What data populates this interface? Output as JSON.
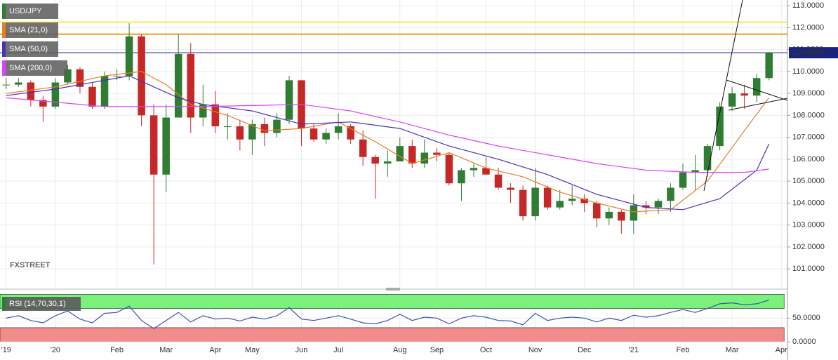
{
  "chart_data": [
    {
      "type": "candlestick",
      "title": "USD/JPY",
      "open": [
        109.4,
        109.4,
        109.5,
        108.7,
        108.4,
        109.5,
        110.1,
        109.3,
        108.4,
        109.8,
        109.8,
        111.6,
        108.0,
        105.3,
        107.9,
        110.8,
        107.9,
        108.5,
        107.5,
        107.5,
        106.9,
        107.6,
        107.2,
        107.8,
        109.6,
        107.4,
        106.9,
        107.2,
        107.5,
        106.9,
        106.1,
        105.8,
        105.9,
        106.6,
        105.8,
        106.3,
        106.2,
        104.9,
        105.5,
        105.6,
        105.3,
        104.7,
        104.6,
        103.4,
        104.7,
        103.8,
        104.1,
        104.2,
        104.0,
        103.3,
        103.6,
        103.2,
        103.9,
        103.8,
        104.1,
        104.7,
        105.4,
        105.5,
        106.6,
        108.4,
        109.0,
        108.9,
        109.7
      ],
      "high": [
        109.7,
        109.7,
        109.6,
        108.9,
        109.7,
        110.3,
        110.2,
        109.5,
        110.0,
        110.1,
        112.2,
        111.7,
        108.5,
        108.5,
        111.7,
        111.3,
        109.4,
        109.1,
        108.1,
        107.8,
        107.8,
        107.9,
        108.1,
        109.8,
        109.6,
        107.6,
        107.4,
        108.1,
        107.6,
        107.3,
        106.2,
        106.4,
        107.0,
        106.9,
        106.9,
        106.5,
        106.3,
        105.6,
        105.8,
        106.1,
        105.6,
        104.9,
        104.8,
        105.6,
        104.8,
        104.6,
        104.8,
        104.4,
        104.1,
        103.8,
        103.7,
        104.4,
        104.1,
        104.2,
        104.9,
        105.8,
        106.2,
        106.7,
        108.6,
        109.3,
        109.4,
        109.9,
        110.9
      ],
      "low": [
        109.2,
        109.3,
        108.4,
        107.7,
        108.3,
        109.4,
        109.0,
        108.3,
        108.3,
        109.6,
        109.6,
        107.5,
        101.2,
        104.5,
        107.9,
        107.2,
        107.5,
        107.2,
        106.9,
        106.4,
        106.2,
        106.6,
        107.0,
        107.6,
        106.6,
        106.8,
        106.7,
        106.9,
        106.7,
        105.7,
        104.2,
        105.2,
        105.9,
        105.6,
        105.6,
        105.9,
        104.8,
        104.1,
        105.2,
        105.3,
        104.6,
        104.0,
        103.2,
        103.2,
        103.7,
        103.7,
        103.9,
        103.6,
        102.9,
        103.0,
        102.6,
        102.6,
        103.5,
        103.5,
        103.6,
        104.6,
        104.6,
        105.2,
        106.4,
        108.2,
        108.3,
        108.6,
        109.6
      ],
      "close": [
        109.4,
        109.5,
        108.7,
        108.4,
        109.5,
        110.1,
        109.3,
        108.4,
        109.8,
        109.8,
        111.6,
        108.0,
        105.3,
        107.9,
        110.8,
        107.9,
        108.5,
        107.5,
        107.5,
        106.9,
        107.6,
        107.2,
        107.8,
        109.6,
        107.4,
        106.9,
        107.2,
        107.5,
        106.9,
        106.1,
        105.8,
        105.9,
        106.6,
        105.8,
        106.3,
        106.2,
        104.9,
        105.5,
        105.6,
        105.3,
        104.7,
        104.6,
        103.4,
        104.7,
        103.8,
        104.1,
        104.2,
        104.0,
        103.3,
        103.6,
        103.2,
        103.9,
        103.8,
        104.1,
        104.7,
        105.4,
        105.5,
        106.6,
        108.4,
        109.0,
        108.9,
        109.7,
        110.856
      ],
      "up_color": "#2e7d32",
      "down_color": "#c62828",
      "series": [
        {
          "name": "SMA (21,0)",
          "color": "#e67e22",
          "x": [
            0,
            4,
            8,
            11,
            13,
            15,
            18,
            21,
            24,
            27,
            30,
            33,
            36,
            39,
            42,
            45,
            48,
            51,
            54,
            57,
            60,
            62
          ],
          "values": [
            109.0,
            109.3,
            109.8,
            110.0,
            109.4,
            108.5,
            108.0,
            107.3,
            107.4,
            107.7,
            106.8,
            105.8,
            106.3,
            105.6,
            105.2,
            104.5,
            104.0,
            103.6,
            103.7,
            105.0,
            107.3,
            108.8
          ]
        },
        {
          "name": "SMA (50,0)",
          "color": "#4b2fbd",
          "x": [
            0,
            4,
            8,
            10,
            12,
            14,
            16,
            20,
            24,
            28,
            32,
            36,
            40,
            44,
            48,
            52,
            55,
            58,
            61,
            62
          ],
          "values": [
            108.9,
            109.2,
            109.6,
            109.8,
            109.3,
            108.8,
            108.5,
            108.2,
            107.6,
            107.7,
            107.4,
            106.6,
            106.0,
            105.3,
            104.4,
            103.8,
            103.7,
            104.2,
            105.5,
            106.7
          ]
        },
        {
          "name": "SMA (200,0)",
          "color": "#e040fb",
          "x": [
            0,
            8,
            16,
            24,
            28,
            32,
            36,
            40,
            44,
            48,
            52,
            56,
            60,
            62
          ],
          "values": [
            108.8,
            108.4,
            108.4,
            108.5,
            108.2,
            107.7,
            107.1,
            106.6,
            106.2,
            105.8,
            105.5,
            105.4,
            105.4,
            105.55
          ]
        }
      ],
      "hlines": [
        {
          "value": 112.25,
          "color": "#ffeb3b"
        },
        {
          "value": 111.7,
          "color": "#f39c12"
        },
        {
          "value": 110.856,
          "color": "#1a237e",
          "label": "110.8560"
        }
      ],
      "watermark": "FXSTREET",
      "xlim": [
        -0.5,
        63.5
      ],
      "xticks": [
        {
          "value": 0,
          "label": "'19"
        },
        {
          "value": 4,
          "label": "'20"
        },
        {
          "value": 9,
          "label": "Feb"
        },
        {
          "value": 13,
          "label": "Mar"
        },
        {
          "value": 17,
          "label": "Apr"
        },
        {
          "value": 20,
          "label": "May"
        },
        {
          "value": 24,
          "label": "Jun"
        },
        {
          "value": 27,
          "label": "Jul"
        },
        {
          "value": 32,
          "label": "Aug"
        },
        {
          "value": 35,
          "label": "Sep"
        },
        {
          "value": 39,
          "label": "Oct"
        },
        {
          "value": 43,
          "label": "Nov"
        },
        {
          "value": 47,
          "label": "Dec"
        },
        {
          "value": 51,
          "label": "'21"
        },
        {
          "value": 55,
          "label": "Feb"
        },
        {
          "value": 59,
          "label": "Mar"
        },
        {
          "value": 63,
          "label": "Apr"
        }
      ],
      "ylim": [
        100.14,
        113.26
      ],
      "yticks": [
        {
          "value": 101,
          "label": "101.0000"
        },
        {
          "value": 102,
          "label": "102.0000"
        },
        {
          "value": 103,
          "label": "103.0000"
        },
        {
          "value": 104,
          "label": "104.0000"
        },
        {
          "value": 105,
          "label": "105.0000"
        },
        {
          "value": 106,
          "label": "106.0000"
        },
        {
          "value": 107,
          "label": "107.0000"
        },
        {
          "value": 108,
          "label": "108.0000"
        },
        {
          "value": 109,
          "label": "109.0000"
        },
        {
          "value": 110,
          "label": "110.0000"
        },
        {
          "value": 111,
          "label": "111.0000"
        },
        {
          "value": 112,
          "label": "112.0000"
        },
        {
          "value": 113,
          "label": "113.0000"
        }
      ],
      "grid": true
    },
    {
      "type": "line",
      "series": [
        {
          "name": "RSI (14,70,30,1)",
          "color": "#3f51b5",
          "values": [
            50,
            55,
            45,
            40,
            55,
            65,
            48,
            40,
            60,
            62,
            75,
            45,
            28,
            45,
            62,
            42,
            55,
            48,
            50,
            44,
            52,
            48,
            55,
            72,
            48,
            45,
            50,
            55,
            48,
            40,
            38,
            45,
            58,
            45,
            52,
            50,
            38,
            50,
            55,
            52,
            45,
            44,
            36,
            60,
            45,
            50,
            52,
            50,
            42,
            50,
            45,
            56,
            52,
            55,
            62,
            68,
            62,
            70,
            80,
            82,
            78,
            80,
            88
          ]
        }
      ],
      "bands": [
        {
          "from": 70,
          "to": 100,
          "color": "#7cf07c"
        },
        {
          "from": 0,
          "to": 30,
          "color": "#f28b8b"
        }
      ],
      "xlim": [
        -0.5,
        63.5
      ],
      "ylim": [
        -4,
        102
      ],
      "yticks": [
        {
          "value": 0,
          "label": "0.0000"
        },
        {
          "value": 50,
          "label": "50.0000"
        }
      ],
      "grid": true
    }
  ]
}
